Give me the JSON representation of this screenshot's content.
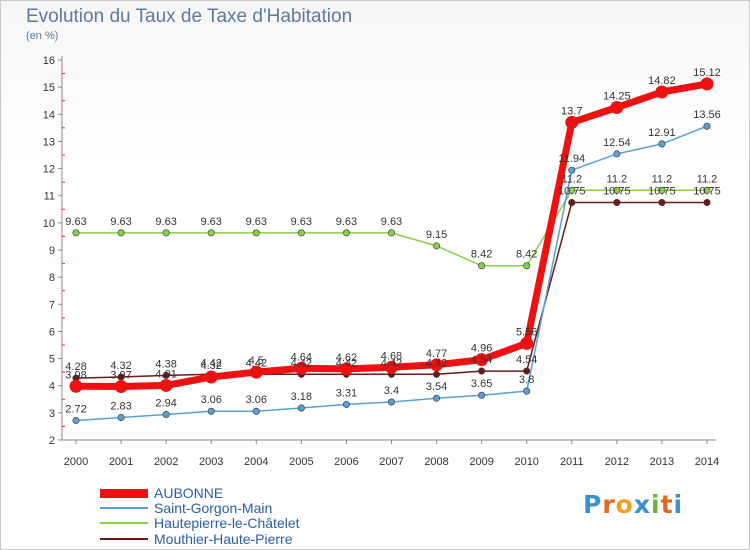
{
  "title": "Evolution du Taux de Taxe d'Habitation",
  "units": "(en %)",
  "logo": {
    "text": "Proxiti",
    "colors": [
      "#3a8fd0",
      "#e06a1b",
      "#f0a020",
      "#3a8fd0",
      "#6cb33f",
      "#e06a1b",
      "#3a8fd0"
    ]
  },
  "chart_data": {
    "type": "line",
    "title": "Evolution du Taux de Taxe d'Habitation",
    "ylabel": "(en %)",
    "xlabel": "",
    "ylim": [
      2,
      16
    ],
    "yticks": [
      2,
      3,
      4,
      5,
      6,
      7,
      8,
      9,
      10,
      11,
      12,
      13,
      14,
      15,
      16
    ],
    "grid": false,
    "legend": "bottom-left",
    "x": [
      "2000",
      "2001",
      "2002",
      "2003",
      "2004",
      "2005",
      "2006",
      "2007",
      "2008",
      "2009",
      "2010",
      "2011",
      "2012",
      "2013",
      "2014"
    ],
    "series": [
      {
        "name": "AUBONNE",
        "color": "#ee1111",
        "values": [
          3.98,
          3.97,
          4.01,
          4.32,
          4.5,
          4.64,
          4.62,
          4.68,
          4.77,
          4.96,
          5.56,
          13.7,
          14.25,
          14.82,
          15.12
        ]
      },
      {
        "name": "Saint-Gorgon-Main",
        "color": "#5a9fd4",
        "values": [
          2.72,
          2.83,
          2.94,
          3.06,
          3.06,
          3.18,
          3.31,
          3.4,
          3.54,
          3.65,
          3.8,
          11.94,
          12.54,
          12.91,
          13.56
        ]
      },
      {
        "name": "Hautepierre-le-Châtelet",
        "color": "#88d048",
        "values": [
          9.63,
          9.63,
          9.63,
          9.63,
          9.63,
          9.63,
          9.63,
          9.63,
          9.15,
          8.42,
          8.42,
          11.2,
          11.2,
          11.2,
          11.2
        ]
      },
      {
        "name": "Mouthier-Haute-Pierre",
        "color": "#6b1a1a",
        "values": [
          4.28,
          4.32,
          4.38,
          4.42,
          4.42,
          4.42,
          4.42,
          4.42,
          4.42,
          4.54,
          4.54,
          10.75,
          10.75,
          10.75,
          10.75
        ]
      }
    ],
    "point_labels": [
      [
        "3.98",
        "3.97",
        "4.01",
        "4.32",
        "4.5",
        "4.64",
        "4.62",
        "4.68",
        "4.77",
        "4.96",
        "5.56",
        "13.7",
        "14.25",
        "14.82",
        "15.12"
      ],
      [
        "2.72",
        "2.83",
        "2.94",
        "3.06",
        "3.06",
        "3.18",
        "3.31",
        "3.4",
        "3.54",
        "3.65",
        "3.8",
        "11.94",
        "12.54",
        "12.91",
        "13.56"
      ],
      [
        "9.63",
        "9.63",
        "9.63",
        "9.63",
        "9.63",
        "9.63",
        "9.63",
        "9.63",
        "9.15",
        "8.42",
        "8.42",
        "11.2",
        "11.2",
        "11.2",
        "11.2"
      ],
      [
        "4.28",
        "4.32",
        "4.38",
        "4.42",
        "4.42",
        "4.42",
        "4.42",
        "4.42",
        "4.42",
        "4.54",
        "4.54",
        "10.75",
        "10.75",
        "10.75",
        "10.75"
      ]
    ]
  }
}
